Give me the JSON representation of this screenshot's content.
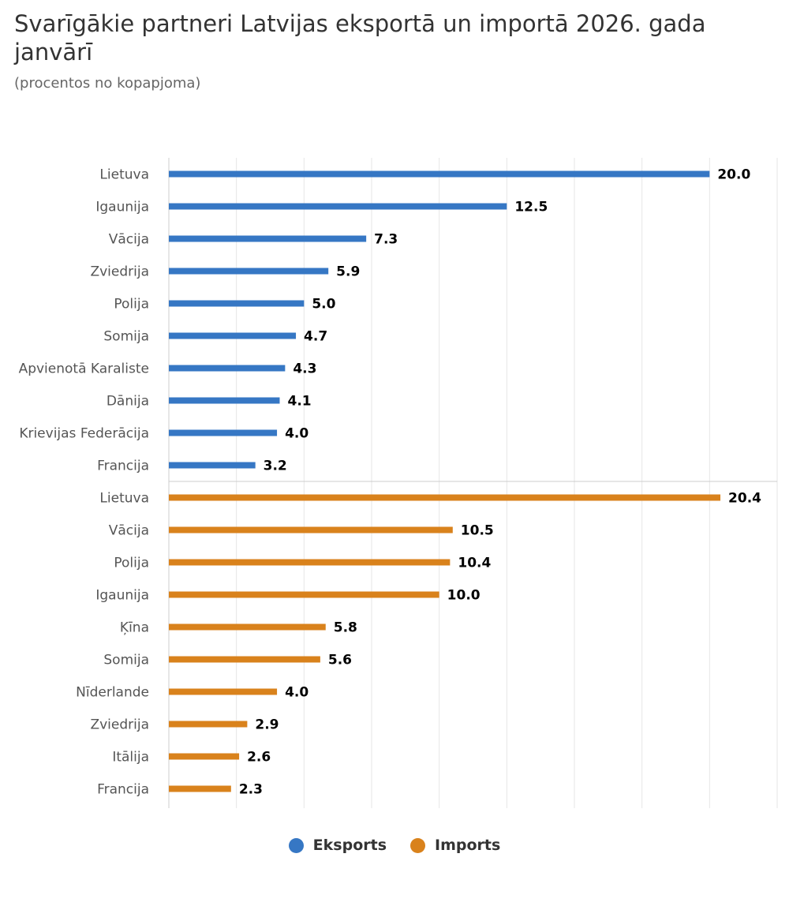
{
  "chart_data": {
    "type": "bar",
    "orientation": "horizontal",
    "title": "Svarīgākie partneri Latvijas eksportā un importā 2026. gada janvārī",
    "subtitle": "(procentos no kopapjoma)",
    "xlim": [
      0,
      22.5
    ],
    "grid": true,
    "legend_position": "bottom-center",
    "series": [
      {
        "name": "Eksports",
        "color": "#3677c4",
        "categories": [
          "Lietuva",
          "Igaunija",
          "Vācija",
          "Zviedrija",
          "Polija",
          "Somija",
          "Apvienotā Karaliste",
          "Dānija",
          "Krievijas Federācija",
          "Francija"
        ],
        "value_labels": [
          "20.0",
          "12.5",
          "7.3",
          "5.9",
          "5.0",
          "4.7",
          "4.3",
          "4.1",
          "4.0",
          "3.2"
        ],
        "values": [
          20.0,
          12.5,
          7.3,
          5.9,
          5.0,
          4.7,
          4.3,
          4.1,
          4.0,
          3.2
        ]
      },
      {
        "name": "Imports",
        "color": "#d9821c",
        "categories": [
          "Lietuva",
          "Vācija",
          "Polija",
          "Igaunija",
          "Ķīna",
          "Somija",
          "Nīderlande",
          "Zviedrija",
          "Itālija",
          "Francija"
        ],
        "value_labels": [
          "20.4",
          "10.5",
          "10.4",
          "10.0",
          "5.8",
          "5.6",
          "4.0",
          "2.9",
          "2.6",
          "2.3"
        ],
        "values": [
          20.4,
          10.5,
          10.4,
          10.0,
          5.8,
          5.6,
          4.0,
          2.9,
          2.6,
          2.3
        ]
      }
    ]
  }
}
